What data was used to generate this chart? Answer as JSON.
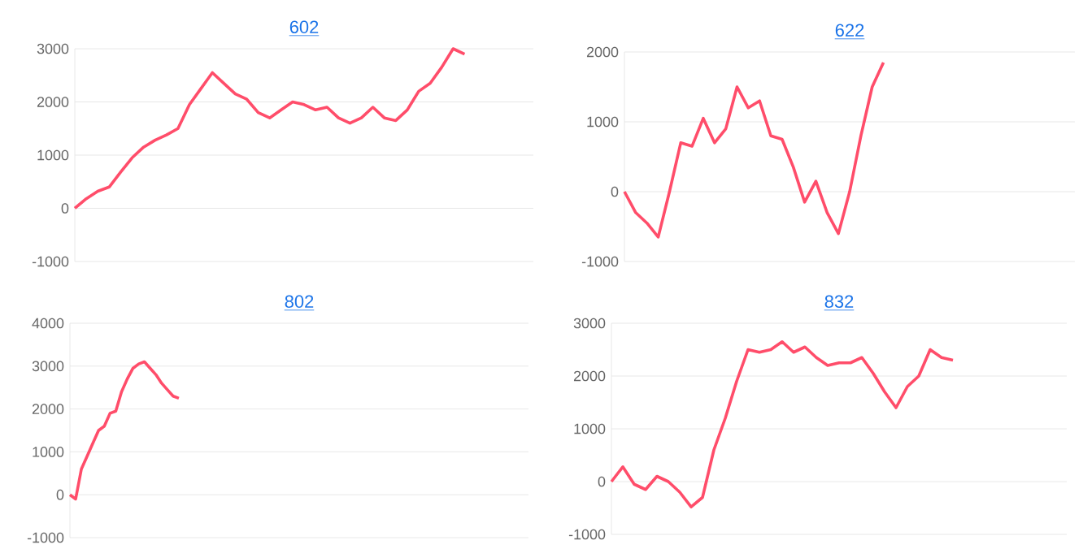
{
  "chart_data": [
    {
      "type": "line",
      "title": "602",
      "categories": [
        null,
        null,
        null,
        null,
        null,
        null,
        null,
        null,
        null,
        null,
        null,
        null,
        null,
        null,
        null,
        null,
        null,
        null,
        null,
        null,
        null,
        null,
        null,
        null,
        null,
        null,
        null,
        null,
        null,
        null,
        null,
        null,
        null,
        null,
        null,
        null,
        null,
        null,
        null,
        null,
        null
      ],
      "values": [
        0,
        180,
        320,
        400,
        680,
        950,
        1150,
        1280,
        1380,
        1500,
        1950,
        2250,
        2550,
        2350,
        2150,
        2050,
        1800,
        1700,
        1850,
        2000,
        1950,
        1850,
        1900,
        1700,
        1600,
        1700,
        1900,
        1700,
        1650,
        1850,
        2200,
        2350,
        2650,
        3000,
        2900,
        null,
        null,
        null,
        null,
        null,
        null
      ],
      "color": "#ff4d6a",
      "ylim": [
        -1000,
        3000
      ],
      "yticks": [
        -1000,
        0,
        1000,
        2000,
        3000
      ],
      "grid": "y",
      "tick_labels": "y"
    },
    {
      "type": "line",
      "title": "622",
      "categories": [
        null,
        null,
        null,
        null,
        null,
        null,
        null,
        null,
        null,
        null,
        null,
        null,
        null,
        null,
        null,
        null,
        null,
        null,
        null,
        null,
        null,
        null,
        null,
        null,
        null,
        null,
        null,
        null,
        null,
        null,
        null,
        null,
        null,
        null,
        null,
        null,
        null,
        null,
        null,
        null,
        null
      ],
      "values": [
        0,
        -300,
        -450,
        -650,
        0,
        700,
        650,
        1050,
        700,
        900,
        1500,
        1200,
        1300,
        800,
        750,
        350,
        -150,
        150,
        -300,
        -600,
        0,
        800,
        1500,
        1850,
        null,
        null,
        null,
        null,
        null,
        null,
        null,
        null,
        null,
        null,
        null,
        null,
        null,
        null,
        null,
        null,
        null
      ],
      "color": "#ff4d6a",
      "ylim": [
        -1000,
        2000
      ],
      "yticks": [
        -1000,
        0,
        1000,
        2000
      ],
      "grid": "y",
      "tick_labels": "y"
    },
    {
      "type": "line",
      "title": "802",
      "categories": [
        null,
        null,
        null,
        null,
        null,
        null,
        null,
        null,
        null,
        null,
        null,
        null,
        null,
        null,
        null,
        null,
        null,
        null,
        null,
        null,
        null,
        null,
        null,
        null,
        null,
        null,
        null,
        null,
        null,
        null,
        null,
        null,
        null,
        null,
        null,
        null,
        null,
        null,
        null,
        null,
        null,
        null,
        null,
        null,
        null,
        null,
        null,
        null,
        null,
        null,
        null,
        null,
        null,
        null,
        null,
        null,
        null,
        null,
        null,
        null,
        null,
        null,
        null,
        null,
        null,
        null,
        null,
        null,
        null,
        null,
        null,
        null,
        null,
        null,
        null,
        null,
        null,
        null,
        null,
        null,
        null
      ],
      "values": [
        0,
        -100,
        600,
        900,
        1200,
        1500,
        1600,
        1900,
        1950,
        2400,
        2700,
        2950,
        3050,
        3100,
        2950,
        2800,
        2600,
        2450,
        2300,
        2250,
        null,
        null,
        null,
        null,
        null,
        null,
        null,
        null,
        null,
        null,
        null,
        null,
        null,
        null,
        null,
        null,
        null,
        null,
        null,
        null,
        null,
        null,
        null,
        null,
        null,
        null,
        null,
        null,
        null,
        null,
        null,
        null,
        null,
        null,
        null,
        null,
        null,
        null,
        null,
        null,
        null,
        null,
        null,
        null,
        null,
        null,
        null,
        null,
        null,
        null,
        null,
        null,
        null,
        null,
        null,
        null,
        null,
        null,
        null,
        null,
        null
      ],
      "color": "#ff4d6a",
      "ylim": [
        -1000,
        4000
      ],
      "yticks": [
        -1000,
        0,
        1000,
        2000,
        3000,
        4000
      ],
      "grid": "y",
      "tick_labels": "y"
    },
    {
      "type": "line",
      "title": "832",
      "categories": [
        null,
        null,
        null,
        null,
        null,
        null,
        null,
        null,
        null,
        null,
        null,
        null,
        null,
        null,
        null,
        null,
        null,
        null,
        null,
        null,
        null,
        null,
        null,
        null,
        null,
        null,
        null,
        null,
        null,
        null,
        null,
        null,
        null,
        null,
        null,
        null,
        null,
        null,
        null,
        null,
        null
      ],
      "values": [
        0,
        280,
        -50,
        -150,
        100,
        0,
        -200,
        -480,
        -300,
        600,
        1200,
        1900,
        2500,
        2450,
        2500,
        2650,
        2450,
        2550,
        2350,
        2200,
        2250,
        2250,
        2350,
        2050,
        1700,
        1400,
        1800,
        2000,
        2500,
        2350,
        2300,
        null,
        null,
        null,
        null,
        null,
        null,
        null,
        null,
        null,
        null
      ],
      "color": "#ff4d6a",
      "ylim": [
        -1000,
        3000
      ],
      "yticks": [
        -1000,
        0,
        1000,
        2000,
        3000
      ],
      "grid": "y",
      "tick_labels": "y"
    }
  ]
}
